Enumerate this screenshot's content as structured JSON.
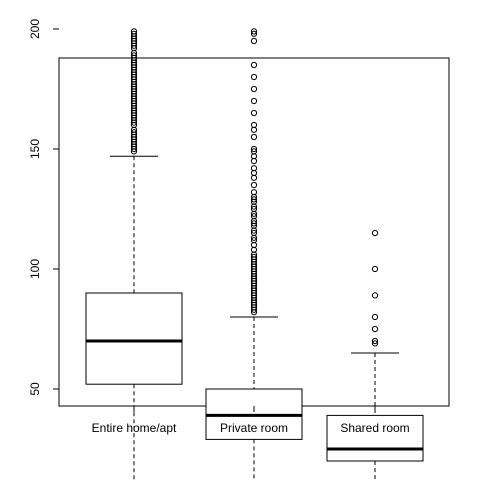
{
  "chart_data": {
    "type": "boxplot",
    "title": "",
    "xlabel": "",
    "ylabel": "",
    "ylim": [
      5,
      205
    ],
    "y_ticks": [
      50,
      100,
      150,
      200
    ],
    "y_tick_labels": [
      "50",
      "100",
      "150",
      "200"
    ],
    "categories": [
      "Entire home/apt",
      "Private room",
      "Shared room"
    ],
    "boxes": [
      {
        "category": "Entire home/apt",
        "whisker_low": 10,
        "q1": 52,
        "median": 70,
        "q3": 90,
        "whisker_high": 147,
        "outliers": [
          149,
          150,
          151,
          152,
          153,
          154,
          155,
          156,
          157,
          158,
          160,
          161,
          162,
          163,
          164,
          165,
          166,
          167,
          168,
          169,
          170,
          171,
          172,
          173,
          174,
          175,
          176,
          177,
          178,
          179,
          180,
          181,
          182,
          183,
          184,
          185,
          186,
          187,
          188,
          189,
          190,
          192,
          193,
          194,
          195,
          196,
          197,
          198,
          199
        ]
      },
      {
        "category": "Private room",
        "whisker_low": 9,
        "q1": 29,
        "median": 39,
        "q3": 50,
        "whisker_high": 80,
        "outliers": [
          82,
          83,
          84,
          85,
          86,
          87,
          88,
          89,
          90,
          91,
          92,
          93,
          94,
          95,
          96,
          97,
          98,
          99,
          100,
          101,
          102,
          103,
          104,
          105,
          106,
          108,
          110,
          112,
          113,
          115,
          116,
          118,
          119,
          120,
          122,
          123,
          125,
          126,
          128,
          129,
          130,
          132,
          135,
          138,
          140,
          142,
          145,
          147,
          149,
          150,
          155,
          158,
          160,
          165,
          170,
          175,
          180,
          185,
          195,
          198,
          199
        ]
      },
      {
        "category": "Shared room",
        "whisker_low": 10,
        "q1": 20,
        "median": 25,
        "q3": 39,
        "whisker_high": 65,
        "outliers": [
          69,
          70,
          75,
          80,
          89,
          100,
          115
        ]
      }
    ],
    "grid": false,
    "legend": "none"
  }
}
